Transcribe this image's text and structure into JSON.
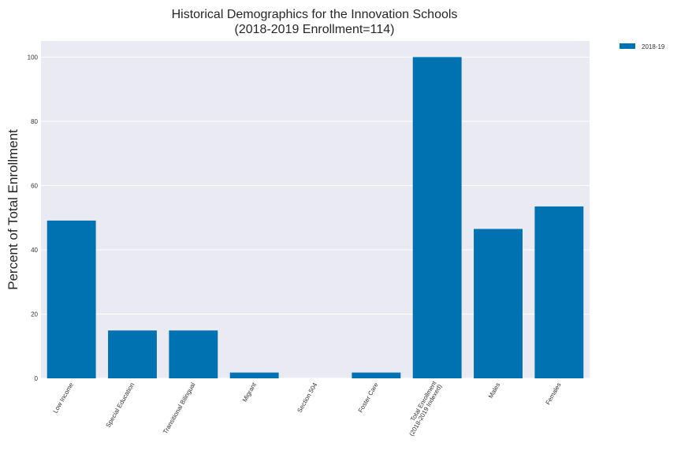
{
  "chart_data": {
    "type": "bar",
    "title_lines": [
      "Historical Demographics for the Innovation Schools",
      "(2018-2019 Enrollment=114)"
    ],
    "xlabel": "",
    "ylabel": "Percent of Total Enrollment",
    "categories": [
      "Low Income",
      "Special Education",
      "Transitional Bilingual",
      "Migrant",
      "Section 504",
      "Foster Care",
      "Total Enrollment\n(2018-2019 Indexed)",
      "Males",
      "Females"
    ],
    "series": [
      {
        "name": "2018-19",
        "color": "#0072B2",
        "values": [
          49.1,
          14.9,
          14.9,
          1.8,
          0.0,
          1.8,
          100.0,
          46.5,
          53.5
        ]
      }
    ],
    "ylim": [
      0,
      105
    ],
    "yticks": [
      0,
      20,
      40,
      60,
      80,
      100
    ],
    "grid": true,
    "legend_position": "outside top-right",
    "background": "#EAEAF2"
  }
}
